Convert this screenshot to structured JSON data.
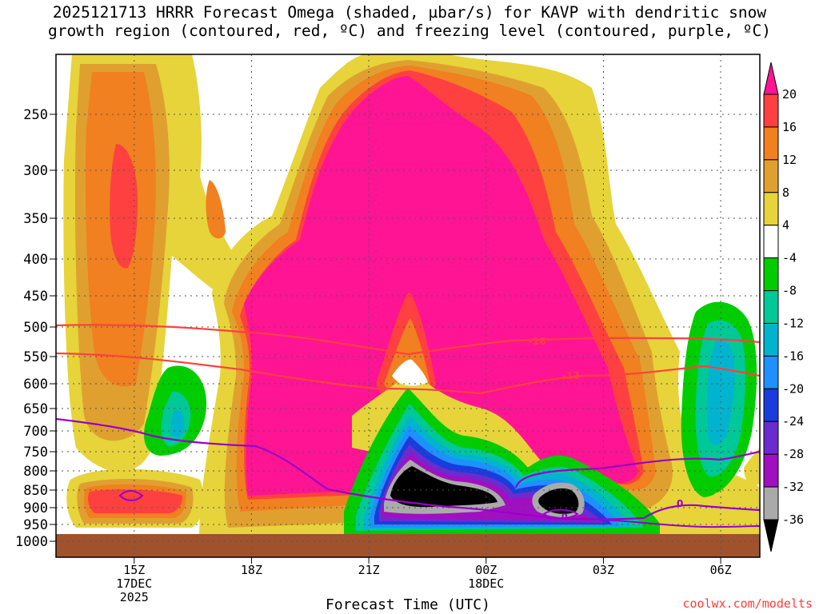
{
  "title": {
    "line1": "2025121713 HRRR Forecast Omega (shaded, µbar/s) for KAVP with dendritic snow",
    "line2": "growth region (contoured, red, ºC) and freezing level (contoured, purple, ºC)"
  },
  "credit": "coolwx.com/modelts",
  "chart_data": {
    "type": "heatmap",
    "title": "2025121713 HRRR Forecast Omega (shaded, µbar/s) for KAVP with dendritic snow growth region (contoured, red, ºC) and freezing level (contoured, purple, ºC)",
    "xlabel": "Forecast Time (UTC)",
    "ylabel": "",
    "x_ticks": [
      {
        "h": 15,
        "lines": [
          "15Z",
          "17DEC",
          "2025"
        ]
      },
      {
        "h": 18,
        "lines": [
          "18Z"
        ]
      },
      {
        "h": 21,
        "lines": [
          "21Z"
        ]
      },
      {
        "h": 24,
        "lines": [
          "00Z",
          "18DEC"
        ]
      },
      {
        "h": 27,
        "lines": [
          "03Z"
        ]
      },
      {
        "h": 30,
        "lines": [
          "06Z"
        ]
      }
    ],
    "x_range_hours": [
      13,
      31
    ],
    "y_ticks": [
      250,
      300,
      350,
      400,
      450,
      500,
      550,
      600,
      650,
      700,
      750,
      800,
      850,
      900,
      950,
      1000
    ],
    "y_range": [
      200,
      1000
    ],
    "colorbar": {
      "labels": [
        "20",
        "16",
        "12",
        "8",
        "4",
        "-4",
        "-8",
        "-12",
        "-16",
        "-20",
        "-24",
        "-28",
        "-32",
        "-36"
      ],
      "bins": [
        {
          "color": "#ff1493"
        },
        {
          "color": "#ff4040"
        },
        {
          "color": "#f08020"
        },
        {
          "color": "#e0a030"
        },
        {
          "color": "#e6d43a"
        },
        {
          "color": "#ffffff"
        },
        {
          "color": "#00cc00"
        },
        {
          "color": "#00c896"
        },
        {
          "color": "#00b4d0"
        },
        {
          "color": "#1e90ff"
        },
        {
          "color": "#1a3cdc"
        },
        {
          "color": "#6a2cd0"
        },
        {
          "color": "#a010c0"
        },
        {
          "color": "#aaaaaa"
        },
        {
          "color": "#000000"
        }
      ]
    },
    "contour_labels": {
      "dgz_top": "-18",
      "dgz_bottom": "-12",
      "freezing": "0"
    },
    "colors": {
      "ground": "#a0522d",
      "dgz": "#ff4040",
      "freezing": "#9900cc"
    }
  }
}
